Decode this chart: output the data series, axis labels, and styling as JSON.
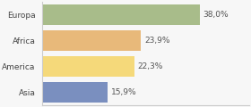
{
  "categories": [
    "Europa",
    "Africa",
    "America",
    "Asia"
  ],
  "values": [
    38.0,
    23.9,
    22.3,
    15.9
  ],
  "labels": [
    "38,0%",
    "23,9%",
    "22,3%",
    "15,9%"
  ],
  "bar_colors": [
    "#a8bc8a",
    "#e8b97a",
    "#f5d97a",
    "#7a8fbf"
  ],
  "background_color": "#f7f7f7",
  "xlim": [
    0,
    50
  ],
  "label_fontsize": 6.5,
  "tick_fontsize": 6.5,
  "bar_height": 0.78
}
